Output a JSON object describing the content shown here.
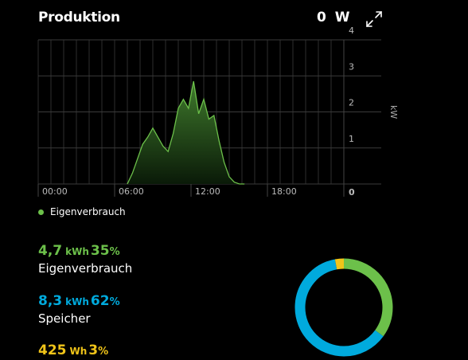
{
  "header": {
    "title": "Produktion",
    "power_value": "0",
    "power_unit": "W",
    "expand_icon": "expand-icon"
  },
  "colors": {
    "self_use": "#6cc04a",
    "storage": "#00aadd",
    "grid": "#f0c419",
    "fill_top": "#3f7a2c",
    "fill_bottom": "#0a1a08"
  },
  "legend": {
    "label": "Eigenverbrauch"
  },
  "chart_data": {
    "type": "area",
    "x_ticks": [
      "00:00",
      "06:00",
      "12:00",
      "18:00"
    ],
    "y_ticks": [
      "4",
      "3",
      "2",
      "1",
      "0"
    ],
    "ylabel": "kW",
    "xlim": [
      0,
      24
    ],
    "ylim": [
      0,
      4
    ],
    "grid": true,
    "series": [
      {
        "name": "Eigenverbrauch",
        "x": [
          7.0,
          7.4,
          7.8,
          8.2,
          8.6,
          9.0,
          9.4,
          9.8,
          10.2,
          10.6,
          11.0,
          11.4,
          11.8,
          12.2,
          12.6,
          13.0,
          13.4,
          13.8,
          14.2,
          14.6,
          15.0,
          15.4,
          15.8,
          16.2
        ],
        "y": [
          0.0,
          0.3,
          0.7,
          1.1,
          1.3,
          1.55,
          1.3,
          1.05,
          0.9,
          1.4,
          2.1,
          2.35,
          2.1,
          2.85,
          1.95,
          2.35,
          1.8,
          1.9,
          1.2,
          0.6,
          0.2,
          0.05,
          0.0,
          0.0
        ]
      }
    ]
  },
  "stats": [
    {
      "value": "4,7",
      "unit": "kWh",
      "percent": "35",
      "percent_sign": "%",
      "label": "Eigenverbrauch"
    },
    {
      "value": "8,3",
      "unit": "kWh",
      "percent": "62",
      "percent_sign": "%",
      "label": "Speicher"
    },
    {
      "value": "425",
      "unit": "Wh",
      "percent": "3",
      "percent_sign": "%",
      "label": ""
    }
  ],
  "donut": {
    "segments": [
      0.35,
      0.62,
      0.03
    ]
  }
}
